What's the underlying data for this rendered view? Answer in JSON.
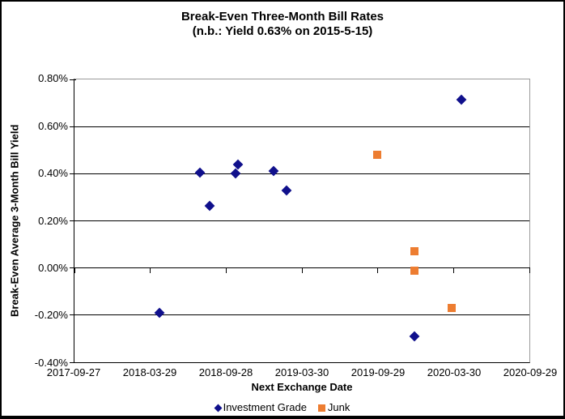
{
  "chart_data": {
    "type": "scatter",
    "title": "Break-Even Three-Month Bill Rates",
    "subtitle": "(n.b.: Yield 0.63% on 2015-5-15)",
    "xlabel": "Next Exchange Date",
    "ylabel": "Break-Even Average 3-Month Bill Yield",
    "xlim": [
      "2017-09-27",
      "2020-09-29"
    ],
    "ylim": [
      -0.4,
      0.8
    ],
    "x_tick_labels": [
      "2017-09-27",
      "2018-03-29",
      "2018-09-28",
      "2019-03-30",
      "2019-09-29",
      "2020-03-30",
      "2020-09-29"
    ],
    "y_tick_labels": [
      "0.80%",
      "0.60%",
      "0.40%",
      "0.20%",
      "0.00%",
      "-0.20%",
      "-0.40%"
    ],
    "y_tick_values": [
      0.8,
      0.6,
      0.4,
      0.2,
      0.0,
      -0.2,
      -0.4
    ],
    "grid": true,
    "axis_cross_value": 0.0,
    "legend_position": "bottom",
    "series": [
      {
        "name": "Investment Grade",
        "marker": "diamond",
        "color": "#10108C",
        "points": [
          {
            "x": "2018-04-21",
            "y": -0.19
          },
          {
            "x": "2018-07-27",
            "y": 0.405
          },
          {
            "x": "2018-08-19",
            "y": 0.265
          },
          {
            "x": "2018-10-21",
            "y": 0.4
          },
          {
            "x": "2018-10-26",
            "y": 0.44
          },
          {
            "x": "2019-01-20",
            "y": 0.41
          },
          {
            "x": "2019-02-20",
            "y": 0.33
          },
          {
            "x": "2019-12-26",
            "y": -0.29
          },
          {
            "x": "2020-04-18",
            "y": 0.715
          }
        ]
      },
      {
        "name": "Junk",
        "marker": "square",
        "color": "#ED7D31",
        "points": [
          {
            "x": "2019-09-27",
            "y": 0.48
          },
          {
            "x": "2019-12-26",
            "y": 0.07
          },
          {
            "x": "2019-12-26",
            "y": -0.01
          },
          {
            "x": "2020-03-26",
            "y": -0.17
          }
        ]
      }
    ]
  }
}
